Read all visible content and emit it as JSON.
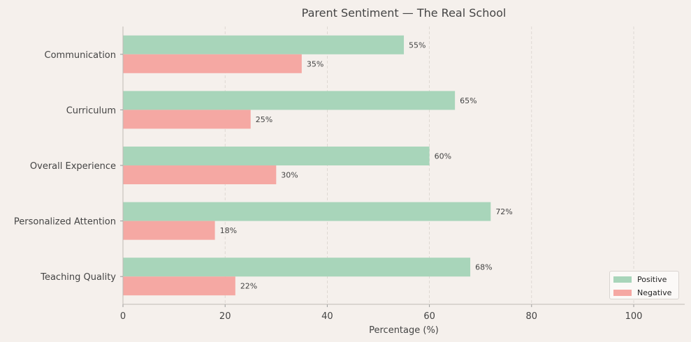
{
  "chart_data": {
    "type": "bar",
    "orientation": "horizontal",
    "title": "Parent Sentiment — The Real School",
    "xlabel": "Percentage (%)",
    "ylabel": "",
    "categories": [
      "Communication",
      "Curriculum",
      "Overall Experience",
      "Personalized Attention",
      "Teaching Quality"
    ],
    "series": [
      {
        "name": "Positive",
        "values": [
          55,
          65,
          60,
          72,
          68
        ],
        "color": "#a8d5ba"
      },
      {
        "name": "Negative",
        "values": [
          35,
          25,
          30,
          18,
          22
        ],
        "color": "#f5a8a3"
      }
    ],
    "data_label_suffix": "%",
    "xlim": [
      0,
      110
    ],
    "xticks": [
      "0",
      "20",
      "40",
      "60",
      "80",
      "100"
    ],
    "grid": "vertical dashed",
    "legend_position": "bottom-right"
  },
  "legend": {
    "positive_label": "Positive",
    "negative_label": "Negative"
  }
}
